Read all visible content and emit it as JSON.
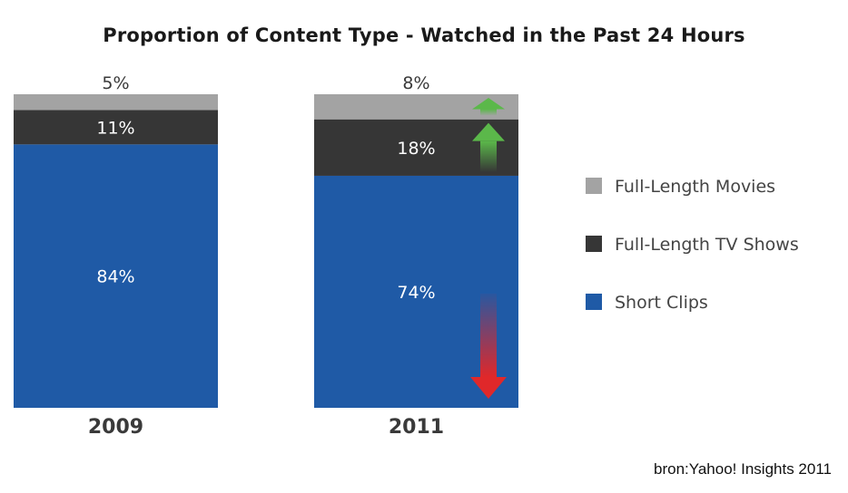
{
  "chart_data": {
    "type": "bar",
    "stacked": true,
    "title": "Proportion of Content Type - Watched in the Past 24 Hours",
    "categories": [
      "2009",
      "2011"
    ],
    "series": [
      {
        "name": "Short Clips",
        "values": [
          84,
          74
        ],
        "labels": [
          "84%",
          "74%"
        ],
        "color": "#1f5aa6",
        "trend": "down"
      },
      {
        "name": "Full-Length TV Shows",
        "values": [
          11,
          18
        ],
        "labels": [
          "11%",
          "18%"
        ],
        "color": "#363636",
        "trend": "up"
      },
      {
        "name": "Full-Length Movies",
        "values": [
          5,
          8
        ],
        "labels": [
          "5%",
          "8%"
        ],
        "color": "#a3a3a3",
        "trend": "up"
      }
    ],
    "ylim": [
      0,
      100
    ],
    "legend_position": "right",
    "trend_colors": {
      "up": "#5bb84a",
      "down": "#e0282a"
    }
  },
  "source": "bron:Yahoo! Insights 2011"
}
